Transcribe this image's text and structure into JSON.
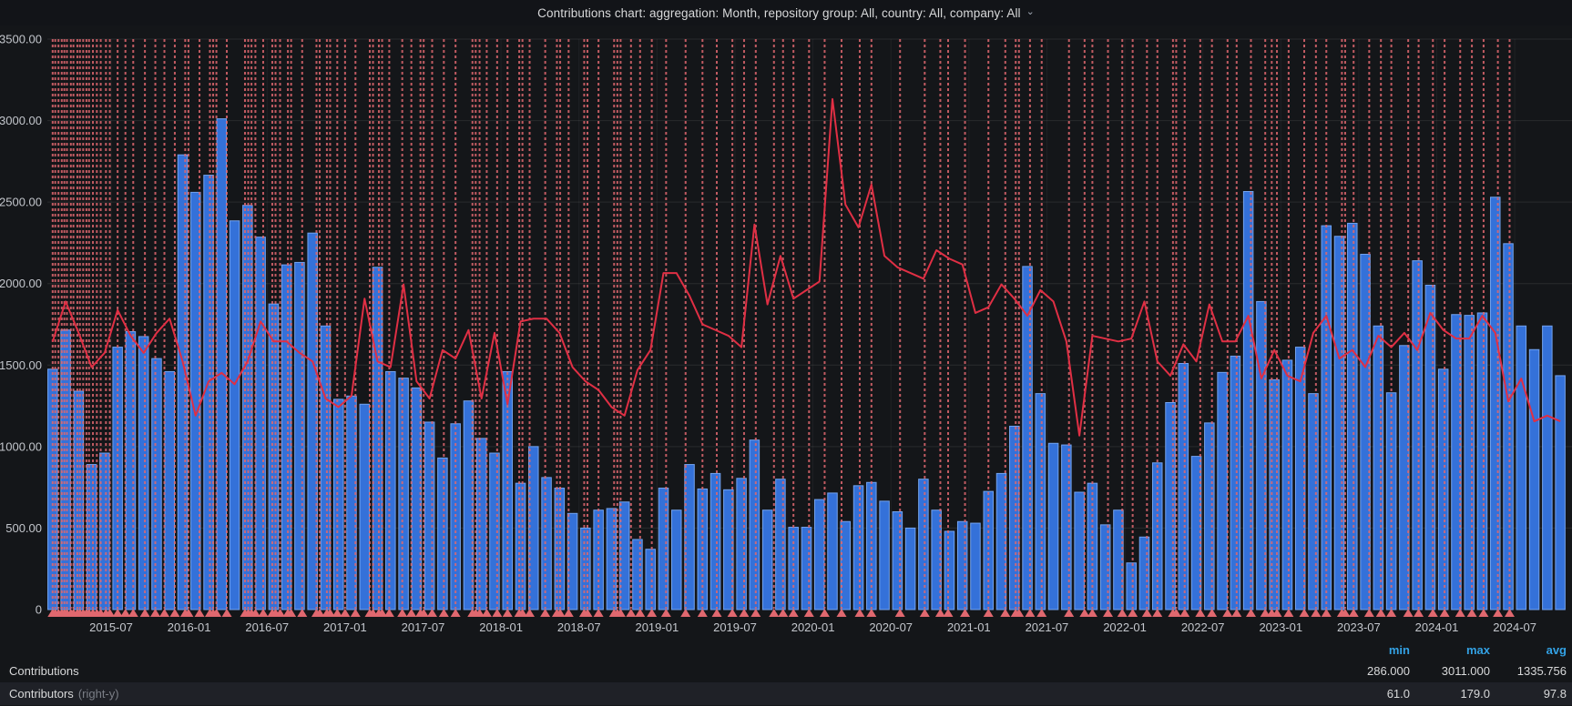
{
  "title": {
    "text": "Contributions chart: aggregation: Month, repository group: All, country: All, company: All",
    "chevron": "⌄"
  },
  "colors": {
    "background": "#141619",
    "grid": "rgba(255,255,255,0.09)",
    "axis_text": "#c3c6cc",
    "bar_fill": "#3471d9",
    "bar_stroke": "#73a3ee",
    "line": "#e02f44",
    "annotation": "#e0686f",
    "legend_header": "#33a2e5",
    "legend_text": "#d8d9da",
    "legend_dim": "#7b7f87"
  },
  "chart_data": {
    "type": "bar+line",
    "title": "Contributions chart",
    "x": [
      "2015-03",
      "2015-04",
      "2015-05",
      "2015-06",
      "2015-07",
      "2015-08",
      "2015-09",
      "2015-10",
      "2015-11",
      "2015-12",
      "2016-01",
      "2016-02",
      "2016-03",
      "2016-04",
      "2016-05",
      "2016-06",
      "2016-07",
      "2016-08",
      "2016-09",
      "2016-10",
      "2016-11",
      "2016-12",
      "2017-01",
      "2017-02",
      "2017-03",
      "2017-04",
      "2017-05",
      "2017-06",
      "2017-07",
      "2017-08",
      "2017-09",
      "2017-10",
      "2017-11",
      "2017-12",
      "2018-01",
      "2018-02",
      "2018-03",
      "2018-04",
      "2018-05",
      "2018-06",
      "2018-07",
      "2018-08",
      "2018-09",
      "2018-10",
      "2018-11",
      "2018-12",
      "2019-01",
      "2019-02",
      "2019-03",
      "2019-04",
      "2019-05",
      "2019-06",
      "2019-07",
      "2019-08",
      "2019-09",
      "2019-10",
      "2019-11",
      "2019-12",
      "2020-01",
      "2020-02",
      "2020-03",
      "2020-04",
      "2020-05",
      "2020-06",
      "2020-07",
      "2020-08",
      "2020-09",
      "2020-10",
      "2020-11",
      "2020-12",
      "2021-01",
      "2021-02",
      "2021-03",
      "2021-04",
      "2021-05",
      "2021-06",
      "2021-07",
      "2021-08",
      "2021-09",
      "2021-10",
      "2021-11",
      "2021-12",
      "2022-01",
      "2022-02",
      "2022-03",
      "2022-04",
      "2022-05",
      "2022-06",
      "2022-07",
      "2022-08",
      "2022-09",
      "2022-10",
      "2022-11",
      "2022-12",
      "2023-01",
      "2023-02",
      "2023-03",
      "2023-04",
      "2023-05",
      "2023-06",
      "2023-07",
      "2023-08",
      "2023-09",
      "2023-10",
      "2023-11",
      "2023-12",
      "2024-01",
      "2024-02",
      "2024-03",
      "2024-04",
      "2024-05",
      "2024-06",
      "2024-07",
      "2024-08",
      "2024-09",
      "2024-10",
      "2024-11"
    ],
    "series": [
      {
        "name": "Contributions",
        "type": "bar",
        "axis": "left",
        "color": "#3471d9",
        "values": [
          1475,
          1715,
          1340,
          890,
          960,
          1610,
          1705,
          1675,
          1540,
          1460,
          2790,
          2560,
          2665,
          3011,
          2385,
          2480,
          2285,
          1875,
          2115,
          2130,
          2310,
          1740,
          1290,
          1310,
          1260,
          2100,
          1460,
          1420,
          1360,
          1150,
          930,
          1140,
          1280,
          1050,
          960,
          1460,
          775,
          1000,
          810,
          745,
          590,
          500,
          610,
          620,
          660,
          430,
          370,
          745,
          610,
          890,
          740,
          835,
          735,
          805,
          1040,
          610,
          800,
          505,
          505,
          675,
          715,
          540,
          760,
          780,
          665,
          600,
          500,
          800,
          610,
          480,
          540,
          530,
          725,
          835,
          1125,
          2105,
          1325,
          1020,
          1010,
          720,
          775,
          520,
          610,
          286,
          445,
          900,
          1270,
          1510,
          940,
          1145,
          1455,
          1555,
          2565,
          1890,
          1410,
          1530,
          1610,
          1325,
          2355,
          2290,
          2370,
          2180,
          1740,
          1330,
          1620,
          2140,
          1990,
          1475,
          1810,
          1805,
          1820,
          2530,
          2245,
          1740,
          1595,
          1740,
          1435
        ]
      },
      {
        "name": "Contributors",
        "type": "line",
        "axis": "right",
        "color": "#e02f44",
        "values": [
          94,
          108,
          97,
          85,
          90,
          105,
          96,
          90,
          97,
          102,
          87,
          68,
          80,
          83,
          79,
          87,
          101,
          94,
          94,
          90,
          87,
          74,
          71,
          75,
          109,
          87,
          85,
          114,
          80,
          74,
          91,
          88,
          98,
          74,
          97,
          72,
          101,
          102,
          102,
          97,
          85,
          80,
          77,
          71,
          68,
          84,
          91,
          118,
          118,
          110,
          100,
          98,
          96,
          92,
          135,
          107,
          124,
          109,
          112,
          115,
          179,
          142,
          134,
          149,
          124,
          120,
          118,
          116,
          126,
          123,
          121,
          104,
          106,
          114,
          109,
          103,
          112,
          108,
          94,
          61,
          96,
          95,
          94,
          95,
          108,
          87,
          82,
          93,
          87,
          107,
          94,
          94,
          103,
          81,
          91,
          82,
          80,
          97,
          103,
          88,
          91,
          85,
          96,
          92,
          97,
          91,
          104,
          98,
          95,
          95,
          103,
          97,
          73,
          81,
          66,
          68,
          66
        ]
      }
    ],
    "left_axis": {
      "min": 0,
      "max": 3500,
      "ticks": [
        "3500.00",
        "3000.00",
        "2500.00",
        "2000.00",
        "1500.00",
        "1000.00",
        "500.00",
        "0"
      ]
    },
    "right_axis": {
      "min": 0,
      "max": 200,
      "labels_visible": false
    },
    "x_ticks": [
      "2015-07",
      "2016-01",
      "2016-07",
      "2017-01",
      "2017-07",
      "2018-01",
      "2018-07",
      "2019-01",
      "2019-07",
      "2020-01",
      "2020-07",
      "2021-01",
      "2021-07",
      "2022-01",
      "2022-07",
      "2023-01",
      "2023-07",
      "2024-01",
      "2024-07"
    ],
    "grid": true,
    "legend_position": "bottom-table",
    "annotation_positions": [
      0.0,
      0.2,
      0.45,
      0.7,
      0.9,
      1.1,
      1.4,
      1.6,
      1.9,
      2.1,
      2.35,
      2.6,
      2.8,
      3.1,
      3.4,
      3.7,
      4.1,
      4.4,
      5.0,
      5.6,
      6.2,
      7.1,
      7.9,
      8.6,
      9.4,
      10.2,
      10.45,
      11.3,
      12.1,
      12.35,
      12.6,
      13.4,
      14.8,
      15.05,
      15.3,
      15.6,
      16.2,
      16.9,
      17.15,
      17.5,
      18.1,
      18.35,
      19.2,
      20.3,
      20.55,
      21.1,
      21.35,
      21.9,
      22.5,
      23.3,
      24.4,
      24.65,
      25.1,
      25.35,
      25.9,
      26.9,
      27.6,
      28.3,
      28.55,
      29.2,
      30.1,
      31.0,
      32.3,
      32.55,
      32.85,
      33.4,
      34.2,
      35.0,
      35.9,
      36.15,
      36.7,
      37.9,
      38.8,
      39.05,
      39.7,
      40.9,
      41.15,
      42.0,
      43.2,
      43.45,
      43.7,
      44.5,
      45.2,
      46.1,
      47.2,
      48.7,
      50.0,
      51.1,
      52.3,
      53.2,
      54.1,
      55.5,
      56.2,
      57.0,
      58.2,
      59.4,
      60.7,
      62.1,
      63.0,
      65.2,
      67.1,
      68.3,
      68.9,
      70.2,
      72.0,
      73.3,
      74.1,
      74.35,
      75.2,
      76.1,
      78.2,
      79.4,
      80.0,
      81.2,
      82.3,
      83.1,
      84.2,
      85.0,
      86.2,
      86.45,
      87.1,
      88.3,
      89.2,
      90.4,
      91.1,
      92.2,
      93.3,
      93.8,
      94.2,
      95.1,
      96.3,
      97.2,
      98.0,
      99.2,
      99.45,
      100.1,
      101.3,
      102.2,
      103.0,
      104.3,
      105.1,
      106.2,
      107.1,
      108.3,
      109.2,
      110.1,
      111.2,
      112.1
    ]
  },
  "legend": {
    "headers": [
      "min",
      "max",
      "avg"
    ],
    "rows": [
      {
        "name": "Contributions",
        "suffix": "",
        "min": "286.000",
        "max": "3011.000",
        "avg": "1335.756"
      },
      {
        "name": "Contributors",
        "suffix": "(right-y)",
        "min": "61.0",
        "max": "179.0",
        "avg": "97.8"
      }
    ]
  }
}
